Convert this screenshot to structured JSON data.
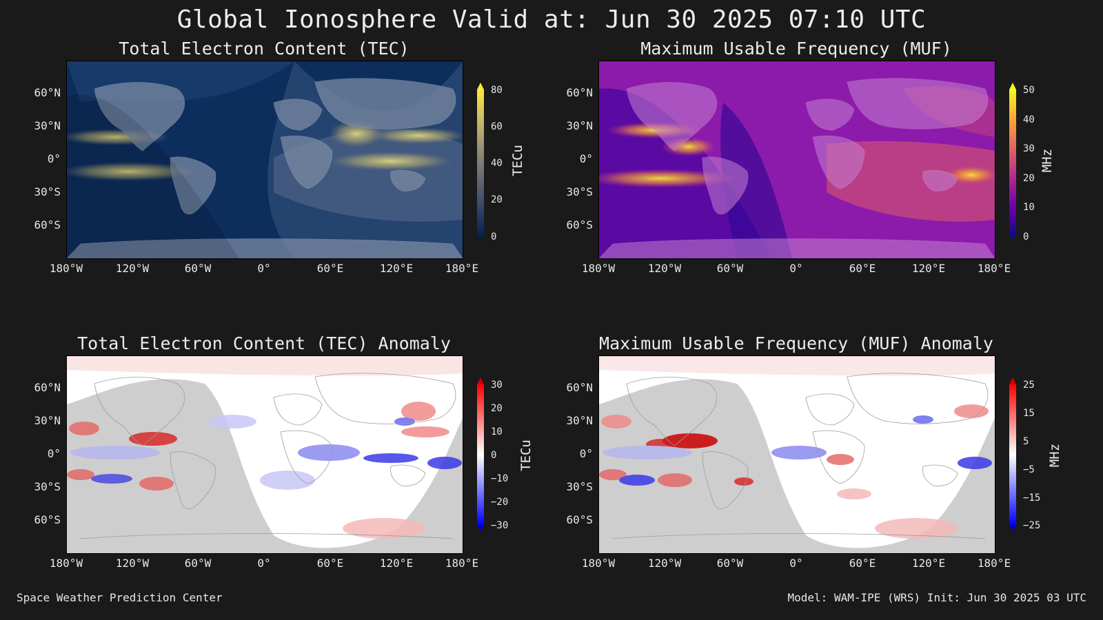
{
  "title": "Global Ionosphere Valid at: Jun 30 2025 07:10 UTC",
  "footer_left": "Space Weather Prediction Center",
  "footer_right": "Model: WAM-IPE (WRS) Init: Jun 30 2025 03 UTC",
  "lat_ticks": [
    "60°N",
    "30°N",
    "0°",
    "30°S",
    "60°S"
  ],
  "lon_ticks": [
    "180°W",
    "120°W",
    "60°W",
    "0°",
    "60°E",
    "120°E",
    "180°E"
  ],
  "panels": [
    {
      "title": "Total Electron Content (TEC)",
      "cbar_label": "TECu",
      "cbar_ticks": [
        "80",
        "60",
        "40",
        "20",
        "0"
      ],
      "colormap": "cividis",
      "colors": [
        "#00224e",
        "#35456c",
        "#666970",
        "#958f78",
        "#cbba69",
        "#fee838"
      ]
    },
    {
      "title": "Maximum Usable Frequency (MUF)",
      "cbar_label": "MHz",
      "cbar_ticks": [
        "50",
        "40",
        "30",
        "20",
        "10",
        "0"
      ],
      "colormap": "plasma",
      "colors": [
        "#0d0887",
        "#6a00a8",
        "#b12a90",
        "#e16462",
        "#fca636",
        "#f0f921"
      ]
    },
    {
      "title": "Total Electron Content (TEC) Anomaly",
      "cbar_label": "TECu",
      "cbar_ticks": [
        "30",
        "20",
        "10",
        "0",
        "−10",
        "−20",
        "−30"
      ],
      "colormap": "bwr",
      "colors": [
        "#0000ff",
        "#7f7fff",
        "#ffffff",
        "#ff7f7f",
        "#ff0000"
      ]
    },
    {
      "title": "Maximum Usable Frequency (MUF) Anomaly",
      "cbar_label": "MHz",
      "cbar_ticks": [
        "25",
        "15",
        "5",
        "−5",
        "−15",
        "−25"
      ],
      "colormap": "bwr",
      "colors": [
        "#0000ff",
        "#7f7fff",
        "#ffffff",
        "#ff7f7f",
        "#ff0000"
      ]
    }
  ]
}
